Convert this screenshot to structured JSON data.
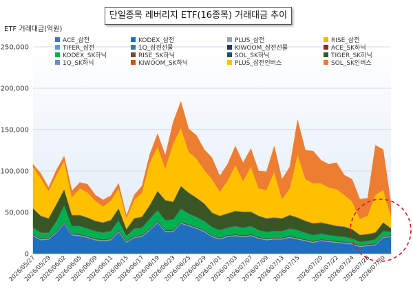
{
  "chart_data": {
    "type": "area",
    "stacked": true,
    "title": "단일종목 레버리지 ETF(16종목) 거래대금 추이",
    "ylabel": "ETF 거래대금(억원)",
    "ylim": [
      0,
      250000
    ],
    "yticks": [
      "0",
      "50,000",
      "100,000",
      "150,000",
      "200,000",
      "250,000"
    ],
    "ytick_values": [
      0,
      50000,
      100000,
      150000,
      200000,
      250000
    ],
    "grid": true,
    "legend_position": "top",
    "x_tick_labels": [
      "2026/05/27",
      "2026/05/29",
      "2026/06/02",
      "2026/06/05",
      "2026/06/09",
      "2026/06/11",
      "2026/06/15",
      "2026/06/17",
      "2026/06/19",
      "2026/06/23",
      "2026/06/25",
      "2026/06/29",
      "2026/07/01",
      "2026/07/03",
      "2026/07/07",
      "2026/07/09",
      "2026/07/13",
      "2026/07/15",
      "2026/07/20",
      "2026/07/22",
      "2026/07/24",
      "2026/07/28",
      "2026/07/30"
    ],
    "x": [
      "2026/05/27",
      "2026/05/28",
      "2026/05/29",
      "2026/06/01",
      "2026/06/02",
      "2026/06/04",
      "2026/06/05",
      "2026/06/08",
      "2026/06/09",
      "2026/06/10",
      "2026/06/11",
      "2026/06/12",
      "2026/06/15",
      "2026/06/16",
      "2026/06/17",
      "2026/06/18",
      "2026/06/19",
      "2026/06/22",
      "2026/06/23",
      "2026/06/24",
      "2026/06/25",
      "2026/06/26",
      "2026/06/29",
      "2026/06/30",
      "2026/07/01",
      "2026/07/02",
      "2026/07/03",
      "2026/07/06",
      "2026/07/07",
      "2026/07/08",
      "2026/07/09",
      "2026/07/10",
      "2026/07/13",
      "2026/07/14",
      "2026/07/15",
      "2026/07/16",
      "2026/07/17",
      "2026/07/20",
      "2026/07/21",
      "2026/07/22",
      "2026/07/23",
      "2026/07/24",
      "2026/07/27",
      "2026/07/28",
      "2026/07/29",
      "2026/07/30",
      "2026/07/31"
    ],
    "series": [
      {
        "name": "ACE_삼전",
        "color": "#4472c4",
        "values": [
          300,
          300,
          300,
          300,
          300,
          300,
          300,
          300,
          300,
          300,
          300,
          300,
          300,
          300,
          300,
          300,
          300,
          300,
          300,
          300,
          300,
          300,
          300,
          300,
          300,
          300,
          300,
          300,
          300,
          300,
          300,
          300,
          300,
          300,
          300,
          300,
          300,
          300,
          300,
          300,
          300,
          300,
          300,
          300,
          300,
          300,
          300
        ]
      },
      {
        "name": "KODEX_삼전",
        "color": "#1f6fbf",
        "values": [
          21000,
          16000,
          17000,
          25000,
          36000,
          22000,
          21000,
          19000,
          16000,
          15000,
          16000,
          26000,
          13000,
          19000,
          20000,
          28000,
          37000,
          26000,
          26000,
          36000,
          33000,
          30000,
          26000,
          20000,
          17000,
          20000,
          21000,
          20000,
          21000,
          18000,
          16000,
          17000,
          17000,
          19000,
          17000,
          15000,
          13000,
          15000,
          14000,
          13000,
          12000,
          11000,
          8000,
          9000,
          10000,
          19000,
          20000
        ]
      },
      {
        "name": "PLUS_삼전",
        "color": "#9aa3ad",
        "values": [
          500,
          500,
          500,
          500,
          500,
          500,
          500,
          500,
          500,
          500,
          500,
          500,
          500,
          500,
          500,
          500,
          500,
          500,
          500,
          500,
          500,
          500,
          500,
          500,
          500,
          500,
          500,
          500,
          500,
          500,
          500,
          500,
          500,
          500,
          500,
          500,
          500,
          500,
          500,
          500,
          500,
          500,
          500,
          500,
          500,
          500,
          500
        ]
      },
      {
        "name": "RISE_삼전",
        "color": "#f0b400",
        "values": [
          300,
          300,
          300,
          300,
          300,
          300,
          300,
          300,
          300,
          300,
          300,
          300,
          300,
          300,
          300,
          300,
          300,
          300,
          300,
          300,
          300,
          300,
          300,
          300,
          300,
          300,
          300,
          300,
          300,
          300,
          300,
          300,
          300,
          300,
          300,
          300,
          300,
          300,
          300,
          300,
          300,
          300,
          300,
          300,
          300,
          300,
          300
        ]
      },
      {
        "name": "TIFER_삼전",
        "color": "#5b9bd5",
        "values": [
          400,
          400,
          400,
          400,
          400,
          400,
          400,
          400,
          400,
          400,
          400,
          400,
          400,
          400,
          400,
          400,
          400,
          400,
          400,
          400,
          400,
          400,
          400,
          400,
          400,
          400,
          400,
          400,
          400,
          400,
          400,
          400,
          400,
          400,
          400,
          400,
          400,
          400,
          400,
          400,
          400,
          400,
          400,
          400,
          400,
          400,
          400
        ]
      },
      {
        "name": "1Q_삼전선물",
        "color": "#3a75b0",
        "values": [
          300,
          300,
          300,
          300,
          300,
          300,
          300,
          300,
          300,
          300,
          300,
          300,
          300,
          300,
          300,
          300,
          300,
          300,
          300,
          300,
          300,
          300,
          300,
          300,
          300,
          300,
          300,
          300,
          300,
          300,
          300,
          300,
          300,
          300,
          300,
          300,
          300,
          300,
          300,
          300,
          300,
          300,
          300,
          300,
          300,
          300,
          300
        ]
      },
      {
        "name": "KIWOOM_삼전선물",
        "color": "#1f3864",
        "values": [
          300,
          300,
          300,
          300,
          300,
          300,
          300,
          300,
          300,
          300,
          300,
          300,
          300,
          300,
          300,
          300,
          300,
          300,
          300,
          300,
          300,
          300,
          300,
          300,
          300,
          300,
          300,
          300,
          300,
          300,
          300,
          300,
          300,
          300,
          300,
          300,
          300,
          300,
          300,
          300,
          300,
          300,
          300,
          300,
          300,
          300,
          300
        ]
      },
      {
        "name": "ACE_SK하닉",
        "color": "#8b2e0f",
        "values": [
          300,
          300,
          300,
          300,
          300,
          300,
          300,
          300,
          300,
          300,
          300,
          300,
          300,
          300,
          300,
          300,
          300,
          300,
          300,
          300,
          300,
          300,
          300,
          300,
          300,
          300,
          300,
          300,
          300,
          300,
          300,
          300,
          300,
          300,
          300,
          300,
          300,
          300,
          300,
          300,
          300,
          300,
          300,
          300,
          300,
          300,
          300
        ]
      },
      {
        "name": "KODEX_SK하닉",
        "color": "#00b050",
        "values": [
          8000,
          7000,
          6000,
          12000,
          20000,
          9000,
          10000,
          9000,
          9000,
          8000,
          9000,
          12000,
          6000,
          9000,
          9000,
          12000,
          13000,
          12000,
          13000,
          16000,
          13000,
          12000,
          11000,
          10000,
          9000,
          9000,
          10000,
          9000,
          10000,
          8000,
          8000,
          8000,
          8000,
          9000,
          9000,
          8000,
          7000,
          7000,
          6000,
          6000,
          6000,
          5000,
          4000,
          4000,
          5000,
          6000,
          4000
        ]
      },
      {
        "name": "RISE_SK하닉",
        "color": "#7f4a2a",
        "values": [
          600,
          600,
          600,
          600,
          600,
          600,
          600,
          600,
          600,
          600,
          600,
          600,
          600,
          600,
          600,
          600,
          600,
          600,
          600,
          600,
          600,
          600,
          600,
          600,
          600,
          600,
          600,
          600,
          600,
          600,
          600,
          600,
          600,
          600,
          600,
          600,
          600,
          600,
          600,
          600,
          600,
          600,
          600,
          600,
          600,
          600,
          600
        ]
      },
      {
        "name": "SOL_SK하닉",
        "color": "#1f4e79",
        "values": [
          400,
          400,
          400,
          400,
          400,
          400,
          400,
          400,
          400,
          400,
          400,
          400,
          400,
          400,
          400,
          400,
          400,
          400,
          400,
          400,
          400,
          400,
          400,
          400,
          400,
          400,
          400,
          400,
          400,
          400,
          400,
          400,
          400,
          400,
          400,
          400,
          400,
          400,
          400,
          400,
          400,
          400,
          400,
          400,
          400,
          400,
          400
        ]
      },
      {
        "name": "TIGER_SK하닉",
        "color": "#375623",
        "values": [
          22000,
          19000,
          16000,
          19000,
          18000,
          12000,
          12000,
          12000,
          11000,
          11000,
          12000,
          13000,
          7000,
          11000,
          12000,
          15000,
          22000,
          23000,
          20000,
          26000,
          24000,
          22000,
          20000,
          16000,
          16000,
          16000,
          17000,
          18000,
          16000,
          16000,
          15000,
          15000,
          14000,
          15000,
          14000,
          13000,
          13000,
          12000,
          12000,
          11000,
          11000,
          10000,
          7000,
          7000,
          7000,
          9000,
          3000
        ]
      },
      {
        "name": "1Q_SK하닉",
        "color": "#6a8fc8",
        "values": [
          400,
          400,
          400,
          400,
          400,
          400,
          400,
          400,
          400,
          400,
          400,
          400,
          400,
          400,
          400,
          400,
          400,
          400,
          400,
          400,
          400,
          400,
          400,
          400,
          400,
          400,
          400,
          400,
          400,
          400,
          400,
          400,
          400,
          400,
          400,
          400,
          400,
          400,
          400,
          400,
          400,
          400,
          400,
          400,
          400,
          400,
          400
        ]
      },
      {
        "name": "KIWOOM_SK하닉",
        "color": "#c55a11",
        "values": [
          300,
          300,
          300,
          300,
          300,
          300,
          300,
          300,
          300,
          300,
          300,
          300,
          300,
          300,
          300,
          300,
          300,
          300,
          300,
          300,
          300,
          300,
          300,
          300,
          300,
          300,
          300,
          300,
          300,
          300,
          300,
          300,
          300,
          300,
          300,
          300,
          300,
          300,
          300,
          300,
          300,
          300,
          300,
          300,
          300,
          300,
          300
        ]
      },
      {
        "name": "PLUS_삼전인버스",
        "color": "#ffc000",
        "values": [
          50000,
          45000,
          33000,
          35000,
          34000,
          21000,
          32000,
          30000,
          24000,
          19000,
          23000,
          24000,
          13000,
          22000,
          29000,
          51000,
          53000,
          38000,
          70000,
          70000,
          49000,
          47000,
          40000,
          40000,
          29000,
          39000,
          55000,
          37000,
          54000,
          33000,
          34000,
          55000,
          23000,
          32000,
          76000,
          50000,
          48000,
          47000,
          44000,
          44000,
          38000,
          33000,
          19000,
          22000,
          45000,
          39000,
          14000
        ]
      },
      {
        "name": "SOL_SK인버스",
        "color": "#ed7d31",
        "values": [
          3000,
          6000,
          4000,
          6000,
          6000,
          8000,
          7000,
          10000,
          7000,
          8000,
          6000,
          6000,
          3000,
          6000,
          8000,
          10000,
          16000,
          16000,
          26000,
          32000,
          28000,
          28000,
          25000,
          26000,
          19000,
          20000,
          23000,
          22000,
          22000,
          21000,
          22000,
          31000,
          24000,
          26000,
          42000,
          35000,
          39000,
          28000,
          28000,
          32000,
          24000,
          27000,
          24000,
          21000,
          60000,
          49000,
          16000
        ]
      }
    ]
  }
}
